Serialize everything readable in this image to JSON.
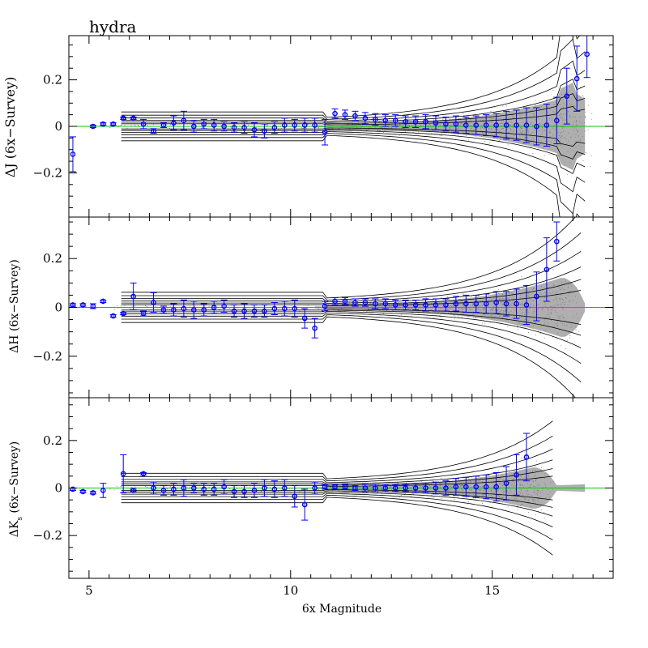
{
  "chart_data": [
    {
      "type": "scatter",
      "panel": "J",
      "title": "hydra",
      "ylabel": "ΔJ (6x−Survey)",
      "xlabel": "",
      "xlim": [
        4.5,
        18
      ],
      "ylim": [
        -0.39,
        0.39
      ],
      "yticks": [
        "0.2",
        "0",
        "−0.2"
      ],
      "zero_line": 0,
      "series": [
        {
          "x": [
            4.6,
            5.1,
            5.35,
            5.6,
            5.85,
            6.1,
            6.35,
            6.6,
            6.85,
            7.1,
            7.35,
            7.6,
            7.85,
            8.1,
            8.35,
            8.6,
            8.85,
            9.1,
            9.35,
            9.6,
            9.85,
            10.1,
            10.35,
            10.6,
            10.85,
            11.1,
            11.35,
            11.6,
            11.85,
            12.1,
            12.35,
            12.6,
            12.85,
            13.1,
            13.35,
            13.6,
            13.85,
            14.1,
            14.35,
            14.6,
            14.85,
            15.1,
            15.35,
            15.6,
            15.85,
            16.1,
            16.35,
            16.6,
            16.85,
            17.1,
            17.35
          ],
          "y": [
            -0.12,
            0.0,
            0.01,
            0.01,
            0.035,
            0.035,
            0.01,
            -0.02,
            0.005,
            0.015,
            0.025,
            0.0,
            0.01,
            0.005,
            0.0,
            -0.005,
            -0.005,
            -0.015,
            -0.02,
            -0.005,
            0.005,
            0.005,
            0.005,
            0.005,
            -0.025,
            0.055,
            0.05,
            0.045,
            0.035,
            0.03,
            0.025,
            0.025,
            0.02,
            0.02,
            0.02,
            0.015,
            0.01,
            0.01,
            0.005,
            0.005,
            0.005,
            0.005,
            0.005,
            0.005,
            0.005,
            0.0,
            0.005,
            0.025,
            0.13,
            0.205,
            0.31
          ],
          "err": [
            0.075,
            0.005,
            0.005,
            0.005,
            0.005,
            0.005,
            0.02,
            0.01,
            0.01,
            0.03,
            0.04,
            0.025,
            0.02,
            0.025,
            0.02,
            0.02,
            0.025,
            0.03,
            0.03,
            0.025,
            0.03,
            0.025,
            0.03,
            0.03,
            0.055,
            0.02,
            0.02,
            0.02,
            0.025,
            0.025,
            0.025,
            0.025,
            0.025,
            0.025,
            0.03,
            0.03,
            0.03,
            0.035,
            0.035,
            0.04,
            0.045,
            0.05,
            0.06,
            0.065,
            0.075,
            0.08,
            0.09,
            0.1,
            0.12,
            0.14,
            0.1
          ]
        }
      ]
    },
    {
      "type": "scatter",
      "panel": "H",
      "ylabel": "ΔH (6x−Survey)",
      "xlabel": "",
      "xlim": [
        4.5,
        18
      ],
      "ylim": [
        -0.37,
        0.37
      ],
      "yticks": [
        "0.2",
        "0",
        "−0.2"
      ],
      "zero_line": 0,
      "series": [
        {
          "x": [
            4.6,
            4.85,
            5.1,
            5.35,
            5.6,
            5.85,
            6.1,
            6.35,
            6.6,
            6.85,
            7.1,
            7.35,
            7.6,
            7.85,
            8.1,
            8.35,
            8.6,
            8.85,
            9.1,
            9.35,
            9.6,
            9.85,
            10.1,
            10.35,
            10.6,
            10.85,
            11.1,
            11.35,
            11.6,
            11.85,
            12.1,
            12.35,
            12.6,
            12.85,
            13.1,
            13.35,
            13.6,
            13.85,
            14.1,
            14.35,
            14.6,
            14.85,
            15.1,
            15.35,
            15.6,
            15.85,
            16.1,
            16.35,
            16.6
          ],
          "y": [
            0.01,
            0.01,
            0.005,
            0.025,
            -0.035,
            -0.025,
            0.045,
            -0.025,
            0.02,
            -0.01,
            -0.01,
            -0.005,
            -0.01,
            -0.01,
            0.0,
            0.005,
            -0.015,
            -0.015,
            -0.015,
            -0.015,
            -0.005,
            -0.005,
            -0.005,
            -0.045,
            -0.085,
            0.005,
            0.025,
            0.025,
            0.02,
            0.02,
            0.015,
            0.015,
            0.01,
            0.01,
            0.01,
            0.01,
            0.01,
            0.01,
            0.015,
            0.015,
            0.015,
            0.015,
            0.02,
            0.015,
            0.015,
            0.01,
            0.045,
            0.155,
            0.27
          ],
          "err": [
            0.005,
            0.005,
            0.01,
            0.005,
            0.005,
            0.005,
            0.055,
            0.01,
            0.04,
            0.015,
            0.025,
            0.035,
            0.035,
            0.025,
            0.025,
            0.025,
            0.025,
            0.03,
            0.025,
            0.025,
            0.025,
            0.03,
            0.035,
            0.04,
            0.04,
            0.02,
            0.015,
            0.015,
            0.015,
            0.015,
            0.02,
            0.02,
            0.02,
            0.02,
            0.02,
            0.025,
            0.025,
            0.025,
            0.03,
            0.035,
            0.035,
            0.04,
            0.045,
            0.05,
            0.06,
            0.08,
            0.1,
            0.13,
            0.08
          ]
        }
      ]
    },
    {
      "type": "scatter",
      "panel": "Ks",
      "ylabel": "ΔKs (6x−Survey)",
      "ylabel_main": "ΔK",
      "ylabel_sub": "s",
      "ylabel_rest": " (6x−Survey)",
      "xlabel": "6x Magnitude",
      "xlim": [
        4.5,
        18
      ],
      "ylim": [
        -0.38,
        0.38
      ],
      "xticks": [
        "5",
        "10",
        "15"
      ],
      "yticks": [
        "0.2",
        "0",
        "−0.2"
      ],
      "zero_line": 0,
      "series": [
        {
          "x": [
            4.6,
            4.85,
            5.1,
            5.35,
            5.85,
            6.1,
            6.35,
            6.6,
            6.85,
            7.1,
            7.35,
            7.6,
            7.85,
            8.1,
            8.35,
            8.6,
            8.85,
            9.1,
            9.35,
            9.6,
            9.85,
            10.1,
            10.35,
            10.6,
            10.85,
            11.1,
            11.35,
            11.6,
            11.85,
            12.1,
            12.35,
            12.6,
            12.85,
            13.1,
            13.35,
            13.6,
            13.85,
            14.1,
            14.35,
            14.6,
            14.85,
            15.1,
            15.35,
            15.6,
            15.85
          ],
          "y": [
            -0.005,
            -0.015,
            -0.02,
            -0.01,
            0.06,
            -0.01,
            0.06,
            0.0,
            -0.01,
            -0.005,
            0.0,
            0.0,
            -0.005,
            -0.005,
            0.005,
            -0.015,
            -0.015,
            -0.01,
            0.0,
            -0.005,
            0.0,
            -0.035,
            -0.07,
            0.0,
            0.005,
            0.005,
            0.005,
            0.0,
            0.0,
            0.0,
            0.0,
            0.0,
            0.0,
            0.0,
            0.0,
            0.0,
            0.0,
            0.005,
            0.005,
            0.005,
            0.005,
            0.005,
            0.02,
            0.055,
            0.13
          ],
          "err": [
            0.005,
            0.005,
            0.005,
            0.03,
            0.08,
            0.005,
            0.005,
            0.025,
            0.02,
            0.025,
            0.035,
            0.02,
            0.025,
            0.025,
            0.03,
            0.025,
            0.025,
            0.03,
            0.035,
            0.035,
            0.035,
            0.045,
            0.065,
            0.025,
            0.01,
            0.01,
            0.01,
            0.01,
            0.015,
            0.015,
            0.015,
            0.015,
            0.015,
            0.02,
            0.02,
            0.025,
            0.03,
            0.035,
            0.04,
            0.045,
            0.05,
            0.06,
            0.07,
            0.085,
            0.1
          ]
        }
      ]
    }
  ],
  "colors": {
    "error_bars": "#0000ff",
    "zero_line": "#00cc00",
    "points": "#777777",
    "contours": "#000000"
  }
}
